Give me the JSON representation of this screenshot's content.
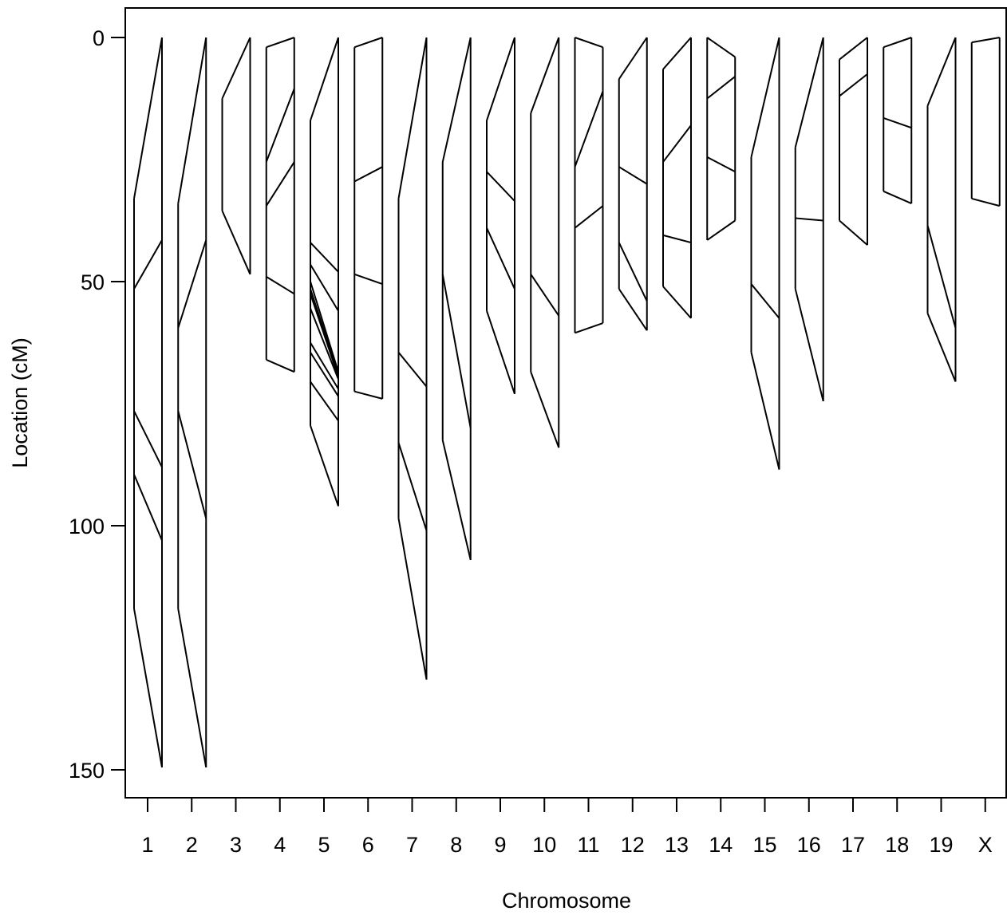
{
  "chart_data": {
    "type": "other",
    "subtype": "comparative-genetic-map",
    "xlabel": "Chromosome",
    "ylabel": "Location (cM)",
    "ylim": [
      0,
      150
    ],
    "y_reversed": true,
    "y_ticks": [
      0,
      50,
      100,
      150
    ],
    "categories": [
      "1",
      "2",
      "3",
      "4",
      "5",
      "6",
      "7",
      "8",
      "9",
      "10",
      "11",
      "12",
      "13",
      "14",
      "15",
      "16",
      "17",
      "18",
      "19",
      "X"
    ],
    "chromosomes": [
      {
        "name": "1",
        "left": [
          33.0,
          51.5,
          76.5,
          89.5,
          117.0
        ],
        "right": [
          0,
          41.5,
          88.0,
          103.0,
          149.5
        ]
      },
      {
        "name": "2",
        "left": [
          34.0,
          59.5,
          76.5,
          117.0
        ],
        "right": [
          0,
          41.5,
          98.5,
          149.5
        ]
      },
      {
        "name": "3",
        "left": [
          12.5,
          35.5
        ],
        "right": [
          0,
          2.0,
          48.5
        ]
      },
      {
        "name": "4",
        "left": [
          2.0,
          25.5,
          34.5,
          49.0,
          66.0
        ],
        "right": [
          0,
          10.5,
          25.5,
          52.5,
          68.5
        ]
      },
      {
        "name": "5",
        "left": [
          17.0,
          42.0,
          46.5,
          50.0,
          51.5,
          52.5,
          55.5,
          62.5,
          64.5,
          70.5,
          79.5
        ],
        "right": [
          0,
          48.0,
          56.0,
          68.5,
          69.0,
          69.5,
          70.0,
          72.0,
          73.5,
          78.5,
          96.0
        ]
      },
      {
        "name": "6",
        "left": [
          2.0,
          29.5,
          48.5,
          72.5
        ],
        "right": [
          0,
          26.5,
          50.5,
          74.0
        ]
      },
      {
        "name": "7",
        "left": [
          33.0,
          64.5,
          83.0,
          98.5
        ],
        "right": [
          0,
          71.5,
          101.0,
          131.5
        ]
      },
      {
        "name": "8",
        "left": [
          25.5,
          48.5,
          82.5
        ],
        "right": [
          0,
          80.0,
          107.0
        ]
      },
      {
        "name": "9",
        "left": [
          17.0,
          27.5,
          39.0,
          56.0
        ],
        "right": [
          0,
          33.5,
          51.5,
          73.0
        ]
      },
      {
        "name": "10",
        "left": [
          15.5,
          48.5,
          68.5
        ],
        "right": [
          0,
          57.0,
          84.0
        ]
      },
      {
        "name": "11",
        "left": [
          0,
          26.5,
          39.0,
          60.5
        ],
        "right": [
          2.0,
          11.0,
          34.5,
          58.5
        ]
      },
      {
        "name": "12",
        "left": [
          8.5,
          26.5,
          42.0,
          51.5
        ],
        "right": [
          0,
          30.0,
          54.0,
          60.0
        ]
      },
      {
        "name": "13",
        "left": [
          6.5,
          25.5,
          40.5,
          51.0
        ],
        "right": [
          0,
          18.0,
          42.0,
          57.5
        ]
      },
      {
        "name": "14",
        "left": [
          0,
          12.5,
          24.5,
          41.5
        ],
        "right": [
          4.0,
          8.0,
          27.5,
          37.5
        ]
      },
      {
        "name": "15",
        "left": [
          24.5,
          50.5,
          64.5
        ],
        "right": [
          0,
          57.5,
          88.5
        ]
      },
      {
        "name": "16",
        "left": [
          22.5,
          37.0,
          51.5
        ],
        "right": [
          0,
          37.5,
          74.5
        ]
      },
      {
        "name": "17",
        "left": [
          4.5,
          12.0,
          37.5
        ],
        "right": [
          0,
          7.5,
          42.5
        ]
      },
      {
        "name": "18",
        "left": [
          2.0,
          16.5,
          31.5
        ],
        "right": [
          0,
          18.5,
          34.0
        ]
      },
      {
        "name": "19",
        "left": [
          14.0,
          38.5,
          56.5
        ],
        "right": [
          0,
          59.5,
          70.5
        ]
      },
      {
        "name": "X",
        "left": [
          1.0,
          33.0
        ],
        "right": [
          0,
          34.5
        ]
      }
    ]
  }
}
